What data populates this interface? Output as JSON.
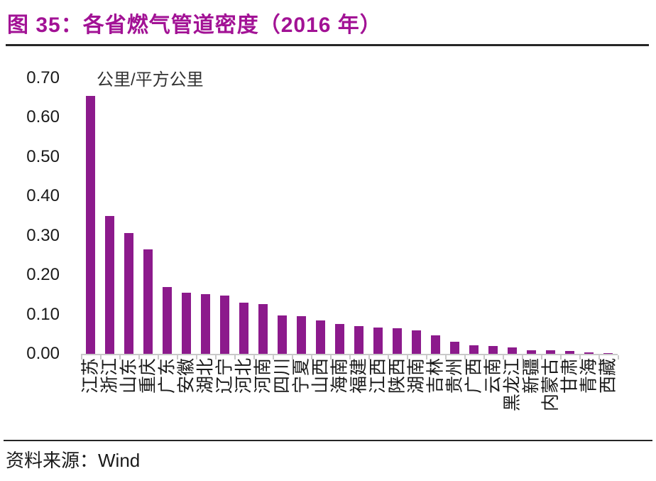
{
  "figure": {
    "title": "图 35：各省燃气管道密度（2016 年）",
    "source_prefix": "资料来源：",
    "source_name": "Wind"
  },
  "colors": {
    "title": "#A21295",
    "bar": "#8C1A8C",
    "axis": "#C9C9C9",
    "text": "#1A1A1A",
    "rule": "#262626"
  },
  "chart_data": {
    "type": "bar",
    "title": "图 35：各省燃气管道密度（2016 年）",
    "unit_label": "公里/平方公里",
    "ylabel": "公里/平方公里",
    "xlabel": "",
    "categories": [
      "江苏",
      "浙江",
      "山东",
      "重庆",
      "广东",
      "安徽",
      "湖北",
      "辽宁",
      "河北",
      "河南",
      "四川",
      "宁夏",
      "山西",
      "海南",
      "福建",
      "江西",
      "陕西",
      "湖南",
      "吉林",
      "贵州",
      "广西",
      "云南",
      "黑龙江",
      "新疆",
      "内蒙古",
      "甘肃",
      "青海",
      "西藏"
    ],
    "values": [
      0.655,
      0.35,
      0.307,
      0.265,
      0.17,
      0.155,
      0.151,
      0.148,
      0.13,
      0.126,
      0.098,
      0.095,
      0.085,
      0.075,
      0.071,
      0.067,
      0.065,
      0.06,
      0.047,
      0.03,
      0.021,
      0.02,
      0.016,
      0.009,
      0.009,
      0.007,
      0.004,
      0.001
    ],
    "ylim": [
      0,
      0.7
    ],
    "yticks": [
      0.0,
      0.1,
      0.2,
      0.3,
      0.4,
      0.5,
      0.6,
      0.7
    ],
    "grid": false,
    "legend": null,
    "bar_color": "#8C1A8C",
    "source": "资料来源：Wind"
  }
}
